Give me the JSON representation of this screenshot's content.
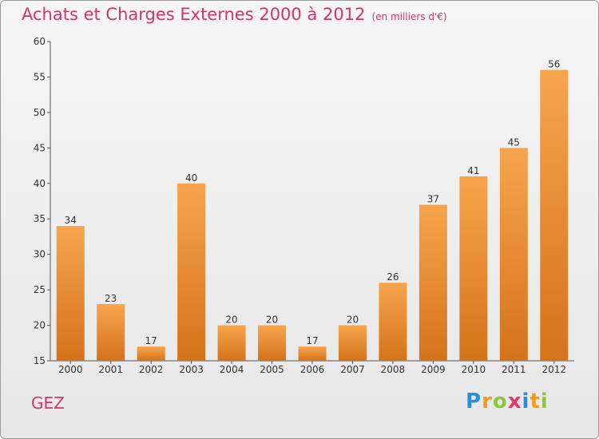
{
  "title": "Achats et Charges Externes 2000 à 2012",
  "unit": "(en milliers d'€)",
  "place": "GEZ",
  "logo": {
    "letters": [
      "P",
      "r",
      "o",
      "x",
      "i",
      "t",
      "i"
    ],
    "colors": [
      "#2b8fd6",
      "#f59b1c",
      "#8cc63f",
      "#e23a6c",
      "#2b8fd6",
      "#f59b1c",
      "#8cc63f"
    ]
  },
  "colors": {
    "bar_top": "#f7a54d",
    "bar_bottom": "#d4731a",
    "title": "#d6336c"
  },
  "chart_data": {
    "type": "bar",
    "title": "Achats et Charges Externes 2000 à 2012",
    "categories": [
      "2000",
      "2001",
      "2002",
      "2003",
      "2004",
      "2005",
      "2006",
      "2007",
      "2008",
      "2009",
      "2010",
      "2011",
      "2012"
    ],
    "values": [
      34,
      23,
      17,
      40,
      20,
      20,
      17,
      20,
      26,
      37,
      41,
      45,
      56
    ],
    "ylim": [
      15,
      60
    ],
    "yticks": [
      15,
      20,
      25,
      30,
      35,
      40,
      45,
      50,
      55,
      60
    ],
    "grid": false,
    "legend": "none"
  }
}
